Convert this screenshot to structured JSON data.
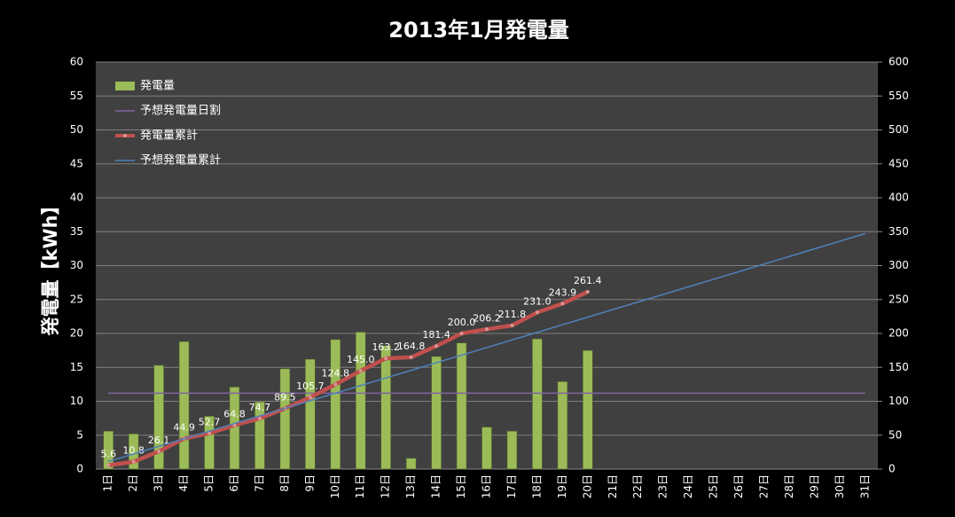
{
  "chart_data": {
    "type": "bar",
    "title": "2013年1月発電量",
    "y_label": "発電量【kWh】",
    "categories": [
      "1日",
      "2日",
      "3日",
      "4日",
      "5日",
      "6日",
      "7日",
      "8日",
      "9日",
      "10日",
      "11日",
      "12日",
      "13日",
      "14日",
      "15日",
      "16日",
      "17日",
      "18日",
      "19日",
      "20日",
      "21日",
      "22日",
      "23日",
      "24日",
      "25日",
      "26日",
      "27日",
      "28日",
      "29日",
      "30日",
      "31日"
    ],
    "series": [
      {
        "name": "発電量",
        "type": "bar",
        "axis": "y",
        "color": "#9bbb59",
        "values": [
          5.6,
          5.2,
          15.3,
          18.8,
          7.8,
          12.1,
          9.9,
          14.8,
          16.2,
          19.1,
          20.2,
          18.2,
          1.6,
          16.6,
          18.6,
          6.2,
          5.6,
          19.2,
          12.9,
          17.5,
          null,
          null,
          null,
          null,
          null,
          null,
          null,
          null,
          null,
          null,
          null
        ]
      },
      {
        "name": "予想発電量日割",
        "type": "line",
        "axis": "y",
        "color": "#8064a2",
        "values": [
          11.2,
          11.2,
          11.2,
          11.2,
          11.2,
          11.2,
          11.2,
          11.2,
          11.2,
          11.2,
          11.2,
          11.2,
          11.2,
          11.2,
          11.2,
          11.2,
          11.2,
          11.2,
          11.2,
          11.2,
          11.2,
          11.2,
          11.2,
          11.2,
          11.2,
          11.2,
          11.2,
          11.2,
          11.2,
          11.2,
          11.2
        ]
      },
      {
        "name": "発電量累計",
        "type": "line",
        "axis": "y2",
        "color": "#c0504d",
        "markers": true,
        "values": [
          5.6,
          10.8,
          26.1,
          44.9,
          52.7,
          64.8,
          74.7,
          89.5,
          105.7,
          124.8,
          145.0,
          163.2,
          164.8,
          181.4,
          200.0,
          206.2,
          211.8,
          231.0,
          243.9,
          261.4,
          null,
          null,
          null,
          null,
          null,
          null,
          null,
          null,
          null,
          null,
          null
        ],
        "value_labels": [
          "5.6",
          "10.8",
          "26.1",
          "44.9",
          "52.7",
          "64.8",
          "74.7",
          "89.5",
          "105.7",
          "124.8",
          "145.0",
          "163.2",
          "164.8",
          "181.4",
          "200.0",
          "206.2",
          "211.8",
          "231.0",
          "243.9",
          "261.4",
          null,
          null,
          null,
          null,
          null,
          null,
          null,
          null,
          null,
          null,
          null
        ]
      },
      {
        "name": "予想発電量累計",
        "type": "line",
        "axis": "y2",
        "color": "#4f81bd",
        "values": [
          11.2,
          22.4,
          33.6,
          44.8,
          56,
          67.2,
          78.4,
          89.6,
          100.8,
          112,
          123.2,
          134.4,
          145.6,
          156.8,
          168,
          179.2,
          190.4,
          201.6,
          212.8,
          224,
          235.2,
          246.4,
          257.6,
          268.8,
          280,
          291.2,
          302.4,
          313.6,
          324.8,
          336,
          347.2
        ]
      }
    ],
    "ylim": [
      0,
      60
    ],
    "yticks": [
      0,
      5,
      10,
      15,
      20,
      25,
      30,
      35,
      40,
      45,
      50,
      55,
      60
    ],
    "y2lim": [
      0,
      600
    ],
    "y2ticks": [
      0,
      50,
      100,
      150,
      200,
      250,
      300,
      350,
      400,
      450,
      500,
      550,
      600
    ],
    "grid": true,
    "legend": "upper left"
  }
}
